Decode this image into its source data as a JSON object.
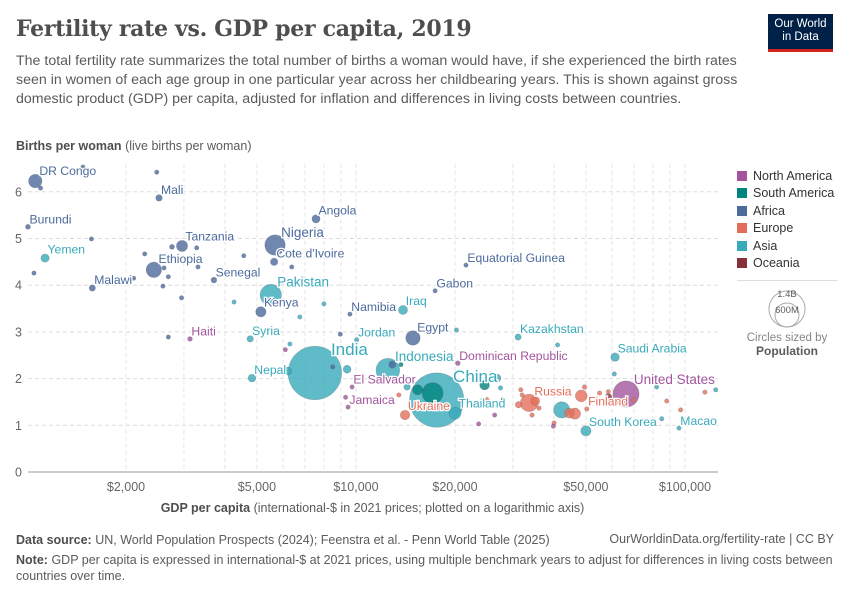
{
  "header": {
    "title": "Fertility rate vs. GDP per capita, 2019",
    "subtitle": "The total fertility rate summarizes the total number of births a woman would have, if she experienced the birth rates seen in women of each age group in one particular year across her childbearing years. This is shown against gross domestic product (GDP) per capita, adjusted for inflation and differences in living costs between countries.",
    "logo_line1": "Our World",
    "logo_line2": "in Data"
  },
  "legend": {
    "items": [
      {
        "label": "North America",
        "color": "#a2559c"
      },
      {
        "label": "South America",
        "color": "#00847e"
      },
      {
        "label": "Africa",
        "color": "#4c6a9c"
      },
      {
        "label": "Europe",
        "color": "#e56e5a"
      },
      {
        "label": "Asia",
        "color": "#38aaba"
      },
      {
        "label": "Oceania",
        "color": "#883039"
      }
    ],
    "size_big": "1.4B",
    "size_small": "600M",
    "size_caption": "Circles sized by",
    "size_variable": "Population"
  },
  "footer": {
    "source_label": "Data source:",
    "source": "UN, World Population Prospects (2024); Feenstra et al. - Penn World Table (2025)",
    "url": "OurWorldinData.org/fertility-rate | CC BY",
    "note_label": "Note:",
    "note": "GDP per capita is expressed in international-$ at 2021 prices, using multiple benchmark years to adjust for differences in living costs between countries over time."
  },
  "chart_data": {
    "type": "scatter",
    "title": "Fertility rate vs. GDP per capita, 2019",
    "ylabel_bold": "Births per woman",
    "ylabel_rest": "(live births per woman)",
    "xlabel_bold": "GDP per capita",
    "xlabel_rest": "(international-$ in 2021 prices; plotted on a logarithmic axis)",
    "x_scale": "log",
    "xlim": [
      1000,
      126000
    ],
    "ylim": [
      0,
      6.6
    ],
    "x_ticks": [
      {
        "value": 2000,
        "label": "$2,000"
      },
      {
        "value": 5000,
        "label": "$5,000"
      },
      {
        "value": 10000,
        "label": "$10,000"
      },
      {
        "value": 20000,
        "label": "$20,000"
      },
      {
        "value": 50000,
        "label": "$50,000"
      },
      {
        "value": 100000,
        "label": "$100,000"
      }
    ],
    "y_ticks": [
      {
        "value": 0,
        "label": "0"
      },
      {
        "value": 1,
        "label": "1"
      },
      {
        "value": 2,
        "label": "2"
      },
      {
        "value": 3,
        "label": "3"
      },
      {
        "value": 4,
        "label": "4"
      },
      {
        "value": 5,
        "label": "5"
      },
      {
        "value": 6,
        "label": "6"
      }
    ],
    "grid": true,
    "legend_position": "right",
    "points": [
      {
        "entity": "India",
        "x": 7500,
        "y": 2.12,
        "population": 1380000000,
        "region": "Asia"
      },
      {
        "entity": "China",
        "x": 17600,
        "y": 1.54,
        "population": 1420000000,
        "region": "Asia"
      },
      {
        "entity": "United States",
        "x": 66200,
        "y": 1.67,
        "population": 330000000,
        "region": "North America"
      },
      {
        "entity": "Indonesia",
        "x": 12500,
        "y": 2.18,
        "population": 270000000,
        "region": "Asia"
      },
      {
        "entity": "Pakistan",
        "x": 5510,
        "y": 3.79,
        "population": 220000000,
        "region": "Asia"
      },
      {
        "entity": "Nigeria",
        "x": 5675,
        "y": 4.86,
        "population": 200000000,
        "region": "Africa"
      },
      {
        "entity": "Russia",
        "x": 33600,
        "y": 1.48,
        "population": 145000000,
        "region": "Europe"
      },
      {
        "entity": "Ethiopia",
        "x": 2430,
        "y": 4.33,
        "population": 114000000,
        "region": "Africa"
      },
      {
        "entity": "Egypt",
        "x": 14900,
        "y": 2.87,
        "population": 100000000,
        "region": "Africa"
      },
      {
        "entity": "DR Congo",
        "x": 1060,
        "y": 6.23,
        "population": 87000000,
        "region": "Africa"
      },
      {
        "entity": "Tanzania",
        "x": 2960,
        "y": 4.84,
        "population": 60000000,
        "region": "Africa"
      },
      {
        "entity": "Kenya",
        "x": 5140,
        "y": 3.43,
        "population": 51000000,
        "region": "Africa"
      },
      {
        "entity": "South Korea",
        "x": 50000,
        "y": 0.88,
        "population": 51000000,
        "region": "Asia"
      },
      {
        "entity": "Ukraine",
        "x": 14100,
        "y": 1.22,
        "population": 44000000,
        "region": "Europe"
      },
      {
        "entity": "Iraq",
        "x": 13900,
        "y": 3.47,
        "population": 40000000,
        "region": "Asia"
      },
      {
        "entity": "Saudi Arabia",
        "x": 61300,
        "y": 2.46,
        "population": 35000000,
        "region": "Asia"
      },
      {
        "entity": "Yemen",
        "x": 1135,
        "y": 4.58,
        "population": 33000000,
        "region": "Asia"
      },
      {
        "entity": "Angola",
        "x": 7560,
        "y": 5.42,
        "population": 32000000,
        "region": "Africa"
      },
      {
        "entity": "Nepal",
        "x": 4830,
        "y": 2.01,
        "population": 29000000,
        "region": "Asia"
      },
      {
        "entity": "Cote d'Ivoire",
        "x": 5640,
        "y": 4.5,
        "population": 26000000,
        "region": "Africa"
      },
      {
        "entity": "Mali",
        "x": 2520,
        "y": 5.87,
        "population": 21000000,
        "region": "Africa"
      },
      {
        "entity": "Malawi",
        "x": 1580,
        "y": 3.94,
        "population": 19000000,
        "region": "Africa"
      },
      {
        "entity": "Kazakhstan",
        "x": 31100,
        "y": 2.89,
        "population": 19000000,
        "region": "Asia"
      },
      {
        "entity": "Syria",
        "x": 4770,
        "y": 2.85,
        "population": 20000000,
        "region": "Asia"
      },
      {
        "entity": "Senegal",
        "x": 3700,
        "y": 4.11,
        "population": 16000000,
        "region": "Africa"
      },
      {
        "entity": "Burundi",
        "x": 1007,
        "y": 5.25,
        "population": 12000000,
        "region": "Africa"
      },
      {
        "entity": "Haiti",
        "x": 3130,
        "y": 2.85,
        "population": 11000000,
        "region": "North America"
      },
      {
        "entity": "Dominican Republic",
        "x": 20400,
        "y": 2.33,
        "population": 11000000,
        "region": "North America"
      },
      {
        "entity": "Jordan",
        "x": 10050,
        "y": 2.83,
        "population": 10000000,
        "region": "Asia"
      },
      {
        "entity": "Thailand",
        "x": 20000,
        "y": 1.26,
        "population": 70000000,
        "region": "Asia"
      },
      {
        "entity": "El Salvador",
        "x": 9730,
        "y": 1.82,
        "population": 6300000,
        "region": "North America"
      },
      {
        "entity": "Finland",
        "x": 50300,
        "y": 1.35,
        "population": 5500000,
        "region": "Europe"
      },
      {
        "entity": "Jamaica",
        "x": 9460,
        "y": 1.39,
        "population": 2800000,
        "region": "North America"
      },
      {
        "entity": "Namibia",
        "x": 9590,
        "y": 3.38,
        "population": 2500000,
        "region": "Africa"
      },
      {
        "entity": "Gabon",
        "x": 17400,
        "y": 3.88,
        "population": 2200000,
        "region": "Africa"
      },
      {
        "entity": "Equatorial Guinea",
        "x": 21600,
        "y": 4.43,
        "population": 1500000,
        "region": "Africa"
      },
      {
        "entity": "Macao",
        "x": 95900,
        "y": 0.94,
        "population": 700000,
        "region": "Asia"
      },
      {
        "x": 1480,
        "y": 6.53,
        "population": 8000000,
        "region": "Africa"
      },
      {
        "x": 2480,
        "y": 6.42,
        "population": 3000000,
        "region": "Africa"
      },
      {
        "x": 1100,
        "y": 6.08,
        "population": 3000000,
        "region": "Africa"
      },
      {
        "x": 1570,
        "y": 4.99,
        "population": 8000000,
        "region": "Africa"
      },
      {
        "x": 1050,
        "y": 4.26,
        "population": 3000000,
        "region": "Africa"
      },
      {
        "x": 2280,
        "y": 4.67,
        "population": 4000000,
        "region": "Africa"
      },
      {
        "x": 2760,
        "y": 4.82,
        "population": 12000000,
        "region": "Africa"
      },
      {
        "x": 2610,
        "y": 4.37,
        "population": 3000000,
        "region": "Africa"
      },
      {
        "x": 2690,
        "y": 4.18,
        "population": 3000000,
        "region": "Africa"
      },
      {
        "x": 2590,
        "y": 3.98,
        "population": 3000000,
        "region": "Africa"
      },
      {
        "x": 2950,
        "y": 3.73,
        "population": 2000000,
        "region": "Africa"
      },
      {
        "x": 3280,
        "y": 4.8,
        "population": 2000000,
        "region": "Africa"
      },
      {
        "x": 3310,
        "y": 4.39,
        "population": 2000000,
        "region": "Africa"
      },
      {
        "x": 4560,
        "y": 4.63,
        "population": 5000000,
        "region": "Africa"
      },
      {
        "x": 6380,
        "y": 4.39,
        "population": 2000000,
        "region": "Africa"
      },
      {
        "x": 2690,
        "y": 2.89,
        "population": 3000000,
        "region": "Africa"
      },
      {
        "x": 8500,
        "y": 2.25,
        "population": 8000000,
        "region": "Africa"
      },
      {
        "x": 8960,
        "y": 2.95,
        "population": 3000000,
        "region": "Africa"
      },
      {
        "x": 2110,
        "y": 4.15,
        "population": 3000000,
        "region": "Africa"
      },
      {
        "x": 12900,
        "y": 2.3,
        "population": 25000000,
        "region": "Africa"
      },
      {
        "x": 4260,
        "y": 3.64,
        "population": 2000000,
        "region": "Asia"
      },
      {
        "x": 6750,
        "y": 3.32,
        "population": 2000000,
        "region": "Asia"
      },
      {
        "x": 7990,
        "y": 3.6,
        "population": 2000000,
        "region": "Asia"
      },
      {
        "x": 6200,
        "y": 2.16,
        "population": 30000000,
        "region": "Asia"
      },
      {
        "x": 9400,
        "y": 2.2,
        "population": 30000000,
        "region": "Asia"
      },
      {
        "x": 6300,
        "y": 2.74,
        "population": 3000000,
        "region": "Asia"
      },
      {
        "x": 9400,
        "y": 2.55,
        "population": 3000000,
        "region": "Asia"
      },
      {
        "x": 14300,
        "y": 1.82,
        "population": 20000000,
        "region": "Asia"
      },
      {
        "x": 20200,
        "y": 3.04,
        "population": 2000000,
        "region": "Asia"
      },
      {
        "x": 26800,
        "y": 2.01,
        "population": 32000000,
        "region": "Asia"
      },
      {
        "x": 27500,
        "y": 1.8,
        "population": 10000000,
        "region": "Asia"
      },
      {
        "x": 42200,
        "y": 1.33,
        "population": 126000000,
        "region": "Asia"
      },
      {
        "x": 41000,
        "y": 2.72,
        "population": 3000000,
        "region": "Asia"
      },
      {
        "x": 61000,
        "y": 2.1,
        "population": 2000000,
        "region": "Asia"
      },
      {
        "x": 82000,
        "y": 1.82,
        "population": 3000000,
        "region": "Asia"
      },
      {
        "x": 124000,
        "y": 1.76,
        "population": 2000000,
        "region": "Asia"
      },
      {
        "x": 85000,
        "y": 1.14,
        "population": 5000000,
        "region": "Asia"
      },
      {
        "x": 17100,
        "y": 1.69,
        "population": 212000000,
        "region": "South America"
      },
      {
        "x": 15400,
        "y": 1.76,
        "population": 50000000,
        "region": "South America"
      },
      {
        "x": 24600,
        "y": 1.86,
        "population": 45000000,
        "region": "South America"
      },
      {
        "x": 13700,
        "y": 2.3,
        "population": 5000000,
        "region": "South America"
      },
      {
        "x": 28000,
        "y": 1.55,
        "population": 5000000,
        "region": "South America"
      },
      {
        "x": 49500,
        "y": 1.82,
        "population": 10000000,
        "region": "Europe"
      },
      {
        "x": 48400,
        "y": 1.63,
        "population": 67000000,
        "region": "Europe"
      },
      {
        "x": 44500,
        "y": 1.26,
        "population": 47000000,
        "region": "Europe"
      },
      {
        "x": 36000,
        "y": 1.37,
        "population": 10000000,
        "region": "Europe"
      },
      {
        "x": 35100,
        "y": 1.52,
        "population": 38000000,
        "region": "Europe"
      },
      {
        "x": 34300,
        "y": 1.22,
        "population": 10000000,
        "region": "Europe"
      },
      {
        "x": 32000,
        "y": 1.65,
        "population": 3000000,
        "region": "Europe"
      },
      {
        "x": 31200,
        "y": 1.44,
        "population": 20000000,
        "region": "Europe"
      },
      {
        "x": 46300,
        "y": 1.25,
        "population": 60000000,
        "region": "Europe"
      },
      {
        "x": 55000,
        "y": 1.69,
        "population": 4000000,
        "region": "Europe"
      },
      {
        "x": 70000,
        "y": 1.54,
        "population": 5000000,
        "region": "Europe"
      },
      {
        "x": 88000,
        "y": 1.52,
        "population": 8000000,
        "region": "Europe"
      },
      {
        "x": 97000,
        "y": 1.33,
        "population": 3000000,
        "region": "Europe"
      },
      {
        "x": 115000,
        "y": 1.71,
        "population": 3000000,
        "region": "Europe"
      },
      {
        "x": 13500,
        "y": 1.65,
        "population": 3000000,
        "region": "Europe"
      },
      {
        "x": 25000,
        "y": 1.55,
        "population": 4000000,
        "region": "Europe"
      },
      {
        "x": 31700,
        "y": 1.76,
        "population": 2000000,
        "region": "Europe"
      },
      {
        "x": 58500,
        "y": 1.72,
        "population": 5000000,
        "region": "Europe"
      },
      {
        "x": 40000,
        "y": 1.05,
        "population": 3000000,
        "region": "Europe"
      },
      {
        "x": 10300,
        "y": 2.59,
        "population": 2000000,
        "region": "North America"
      },
      {
        "x": 6100,
        "y": 2.62,
        "population": 3000000,
        "region": "North America"
      },
      {
        "x": 9300,
        "y": 1.6,
        "population": 3000000,
        "region": "North America"
      },
      {
        "x": 26400,
        "y": 1.22,
        "population": 3000000,
        "region": "North America"
      },
      {
        "x": 39800,
        "y": 0.98,
        "population": 3000000,
        "region": "North America"
      },
      {
        "x": 67000,
        "y": 1.1,
        "population": 2000000,
        "region": "North America"
      },
      {
        "x": 23600,
        "y": 1.03,
        "population": 3000000,
        "region": "North America"
      },
      {
        "x": 44600,
        "y": 1.69,
        "population": 2000000,
        "region": "Oceania"
      },
      {
        "x": 58500,
        "y": 1.6,
        "population": 25000000,
        "region": "Oceania"
      },
      {
        "x": 64000,
        "y": 1.5,
        "population": 5000000,
        "region": "Oceania"
      }
    ]
  }
}
